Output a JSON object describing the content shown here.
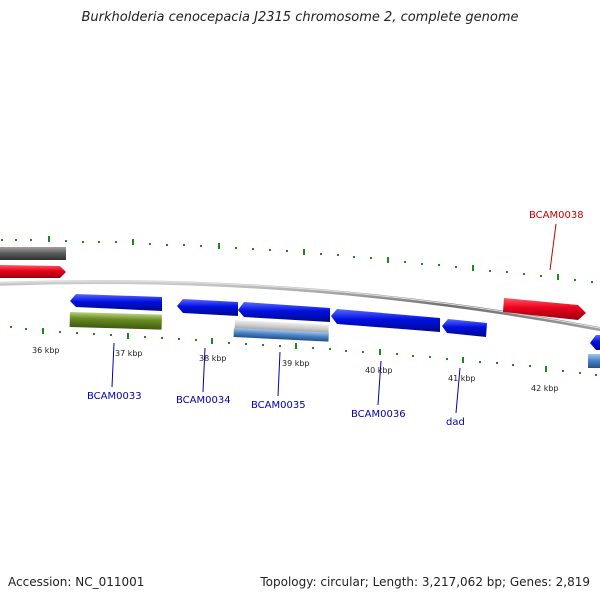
{
  "title": "Burkholderia cenocepacia J2315 chromosome 2, complete genome",
  "ticks": {
    "unit": "kbp",
    "major_labels": [
      "36 kbp",
      "37 kbp",
      "38 kbp",
      "39 kbp",
      "40 kbp",
      "41 kbp",
      "42 kbp"
    ]
  },
  "colors": {
    "forward_gene": "#e8001c",
    "reverse_gene": "#0010e0",
    "green_track": "#6a8c22",
    "grey_track": "#b8b8b8",
    "steel_track": "#4a80c0",
    "dark_track": "#5a5a5a",
    "tick_green": "#1a8a1a",
    "label_blue": "#0000b0",
    "label_red": "#cc0000"
  },
  "genes": [
    {
      "label": "BCAM0033",
      "strand": "reverse"
    },
    {
      "label": "BCAM0034",
      "strand": "reverse"
    },
    {
      "label": "BCAM0035",
      "strand": "reverse"
    },
    {
      "label": "BCAM0036",
      "strand": "reverse"
    },
    {
      "label": "dad",
      "strand": "reverse"
    },
    {
      "label": "BCAM0038",
      "strand": "forward"
    }
  ],
  "footer": {
    "accession": "Accession: NC_011001",
    "summary": "Topology: circular; Length: 3,217,062 bp; Genes: 2,819"
  }
}
